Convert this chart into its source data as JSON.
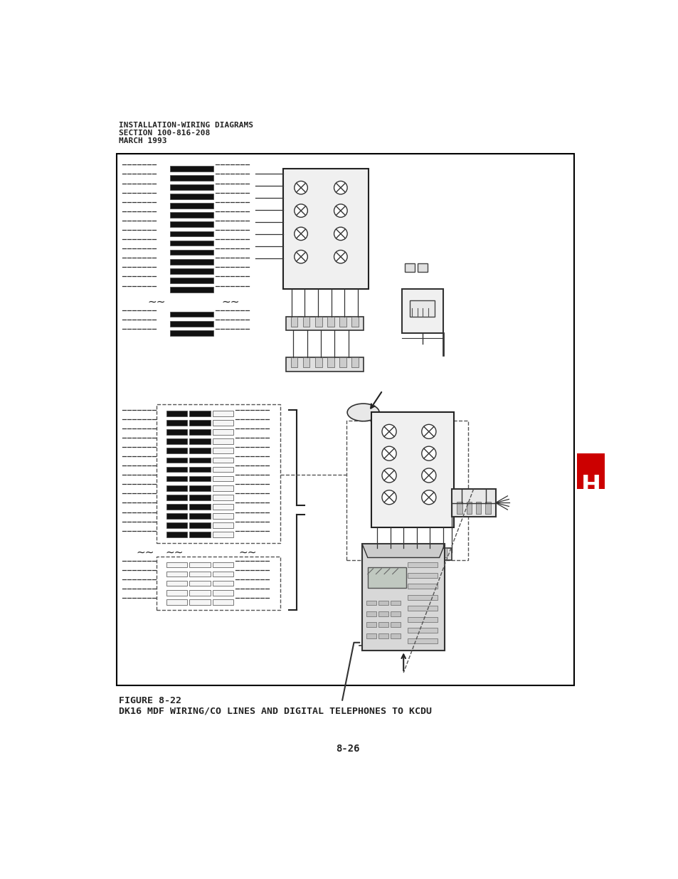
{
  "title_line1": "INSTALLATION-WIRING DIAGRAMS",
  "title_line2": "SECTION 100-816-208",
  "title_line3": "MARCH 1993",
  "figure_label": "FIGURE 8-22",
  "figure_title": "DK16 MDF WIRING/CO LINES AND DIGITAL TELEPHONES TO KCDU",
  "page_number": "8-26",
  "background_color": "#ffffff",
  "border_color": "#000000",
  "tab_color": "#cc0000",
  "tab_text": "H",
  "tab_text_color": "#ffffff"
}
